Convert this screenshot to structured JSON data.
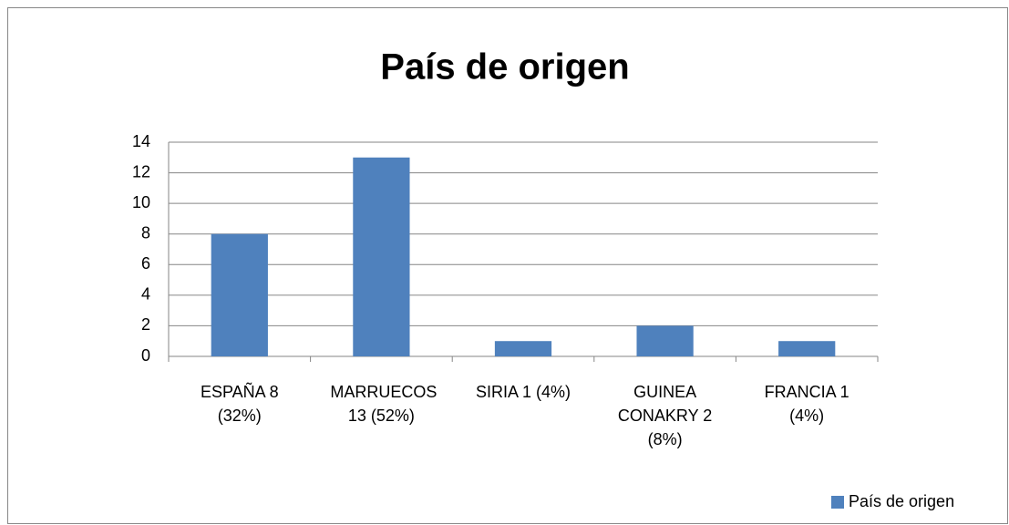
{
  "chart_data": {
    "type": "bar",
    "title": "País de origen",
    "categories": [
      "ESPAÑA 8 (32%)",
      "MARRUECOS 13 (52%)",
      "SIRIA 1 (4%)",
      "GUINEA CONAKRY 2 (8%)",
      "FRANCIA 1 (4%)"
    ],
    "series": [
      {
        "name": "País de origen",
        "color": "#4f81bd",
        "values": [
          8,
          13,
          1,
          2,
          1
        ]
      }
    ],
    "ylim": [
      0,
      14
    ],
    "yticks": [
      0,
      2,
      4,
      6,
      8,
      10,
      12,
      14
    ],
    "grid": true,
    "legend": "bottom-right"
  }
}
